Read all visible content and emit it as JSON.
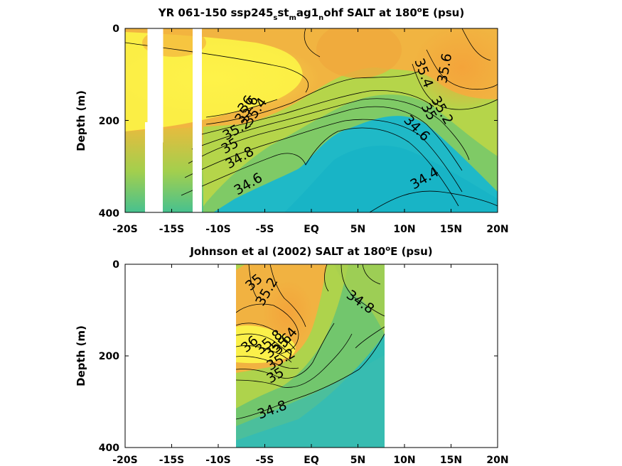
{
  "chart_data": [
    {
      "type": "heatmap",
      "title_parts": [
        "YR 061-150 ssp245",
        "s",
        "st",
        "m",
        "ag1",
        "n",
        "ohf SALT at 180",
        "o",
        "E (psu)"
      ],
      "ylabel": "Depth (m)",
      "x_ticks": [
        "-20S",
        "-15S",
        "-10S",
        "-5S",
        "EQ",
        "5N",
        "10N",
        "15N",
        "20N"
      ],
      "y_ticks": [
        "0",
        "200",
        "400"
      ],
      "xlim": [
        -20,
        20
      ],
      "ylim": [
        0,
        400
      ],
      "contour_labels": [
        "36",
        "35.8",
        "35.6",
        "35.4",
        "35.2",
        "35",
        "34.8",
        "34.6",
        "34.4",
        "35.4",
        "35.2",
        "35",
        "34.8",
        "34.6",
        "35.6",
        "35.2",
        "35"
      ],
      "missing_columns_lat": [
        [
          -18.3,
          -16.8
        ],
        [
          -13.8,
          -12.8
        ]
      ],
      "colors": {
        "fresh": "#1cb8c8",
        "mid": "#a8d24a",
        "salty_orange": "#f2a93b",
        "salty_yellow": "#fbf34a"
      }
    },
    {
      "type": "heatmap",
      "title_parts": [
        "Johnson et al (2002) SALT at 180",
        "o",
        "E (psu)"
      ],
      "ylabel": "Depth (m)",
      "x_ticks": [
        "-20S",
        "-15S",
        "-10S",
        "-5S",
        "EQ",
        "5N",
        "10N",
        "15N",
        "20N"
      ],
      "y_ticks": [
        "0",
        "200",
        "400"
      ],
      "xlim": [
        -20,
        20
      ],
      "ylim": [
        0,
        400
      ],
      "data_extent_lat": [
        -8,
        8
      ],
      "contour_labels": [
        "35",
        "35.2",
        "36",
        "35.8",
        "35.6",
        "35.4",
        "35.2",
        "35",
        "34.8",
        "34.8"
      ],
      "colors": {
        "fresh": "#1cb8c8",
        "mid": "#a8d24a",
        "salty_orange": "#f2a93b",
        "salty_yellow": "#fbf34a"
      }
    }
  ]
}
